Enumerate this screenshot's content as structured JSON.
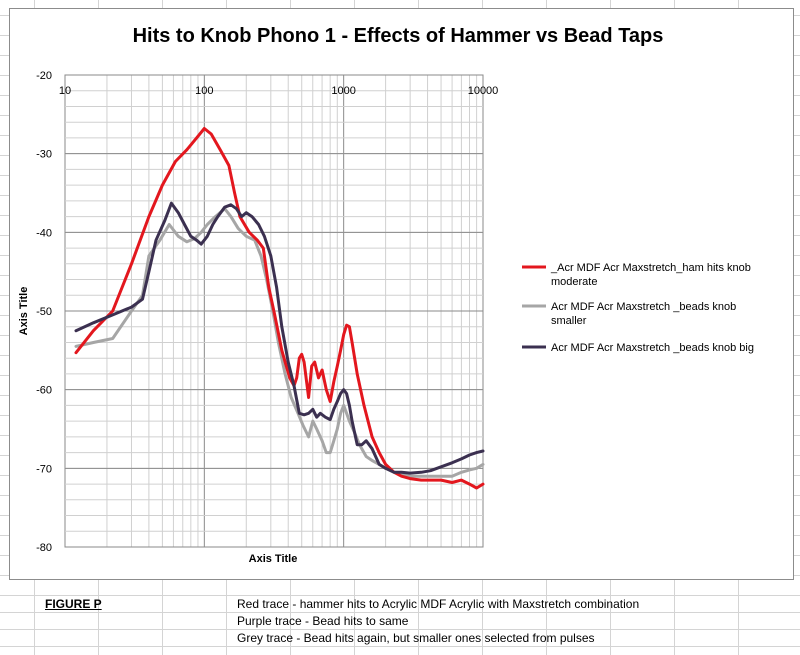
{
  "chart_data": {
    "type": "line",
    "title": "Hits to Knob Phono 1 - Effects of Hammer vs Bead Taps",
    "xlabel": "Axis Title",
    "ylabel": "Axis Title",
    "x_scale": "log",
    "xlim": [
      10,
      10000
    ],
    "ylim": [
      -80,
      -20
    ],
    "x_ticks": [
      10,
      100,
      1000,
      10000
    ],
    "x_tick_labels": [
      "10",
      "100",
      "1000",
      "10000"
    ],
    "y_ticks": [
      -20,
      -30,
      -40,
      -50,
      -60,
      -70,
      -80
    ],
    "y_tick_labels": [
      "-20",
      "-30",
      "-40",
      "-50",
      "-60",
      "-70",
      "-80"
    ],
    "grid": true,
    "x_axis_position": "top",
    "legend_position": "right",
    "series": [
      {
        "name": "_Acr MDF Acr Maxstretch_ham hits knob moderate",
        "color": "#e3171e",
        "points": [
          [
            12,
            -55.3
          ],
          [
            16,
            -52.5
          ],
          [
            22,
            -50
          ],
          [
            30,
            -44
          ],
          [
            40,
            -38
          ],
          [
            50,
            -34
          ],
          [
            62,
            -31
          ],
          [
            75,
            -29.5
          ],
          [
            88,
            -28
          ],
          [
            100,
            -26.8
          ],
          [
            112,
            -27.5
          ],
          [
            130,
            -29.5
          ],
          [
            150,
            -31.5
          ],
          [
            165,
            -35
          ],
          [
            180,
            -38
          ],
          [
            210,
            -40
          ],
          [
            240,
            -41
          ],
          [
            265,
            -42
          ],
          [
            290,
            -47
          ],
          [
            320,
            -50.5
          ],
          [
            360,
            -55
          ],
          [
            410,
            -58.5
          ],
          [
            440,
            -59.5
          ],
          [
            460,
            -58.5
          ],
          [
            480,
            -56
          ],
          [
            500,
            -55.5
          ],
          [
            520,
            -56.5
          ],
          [
            560,
            -61
          ],
          [
            590,
            -57
          ],
          [
            620,
            -56.5
          ],
          [
            660,
            -58.5
          ],
          [
            700,
            -57.5
          ],
          [
            750,
            -60
          ],
          [
            800,
            -61.5
          ],
          [
            850,
            -59
          ],
          [
            900,
            -57
          ],
          [
            950,
            -55
          ],
          [
            1000,
            -53
          ],
          [
            1050,
            -51.8
          ],
          [
            1100,
            -52
          ],
          [
            1150,
            -54
          ],
          [
            1250,
            -58
          ],
          [
            1400,
            -62
          ],
          [
            1600,
            -66
          ],
          [
            1800,
            -68
          ],
          [
            2000,
            -69.5
          ],
          [
            2300,
            -70.5
          ],
          [
            2600,
            -71
          ],
          [
            3000,
            -71.3
          ],
          [
            3600,
            -71.5
          ],
          [
            4200,
            -71.5
          ],
          [
            5000,
            -71.5
          ],
          [
            6000,
            -71.8
          ],
          [
            7000,
            -71.5
          ],
          [
            8000,
            -72
          ],
          [
            9000,
            -72.5
          ],
          [
            10000,
            -72
          ]
        ]
      },
      {
        "name": "Acr MDF  Acr Maxstretch _beads knob smaller",
        "color": "#a6a6a6",
        "points": [
          [
            12,
            -54.5
          ],
          [
            16,
            -54
          ],
          [
            22,
            -53.5
          ],
          [
            30,
            -50
          ],
          [
            36,
            -48
          ],
          [
            40,
            -43
          ],
          [
            48,
            -41
          ],
          [
            56,
            -39
          ],
          [
            65,
            -40.5
          ],
          [
            75,
            -41.2
          ],
          [
            85,
            -40.8
          ],
          [
            95,
            -40
          ],
          [
            105,
            -39
          ],
          [
            120,
            -38
          ],
          [
            140,
            -37
          ],
          [
            155,
            -38
          ],
          [
            175,
            -39.5
          ],
          [
            200,
            -40.5
          ],
          [
            230,
            -41
          ],
          [
            255,
            -43
          ],
          [
            280,
            -46
          ],
          [
            310,
            -50
          ],
          [
            340,
            -54
          ],
          [
            380,
            -58
          ],
          [
            420,
            -61
          ],
          [
            470,
            -63
          ],
          [
            510,
            -64.5
          ],
          [
            560,
            -66
          ],
          [
            600,
            -64
          ],
          [
            640,
            -65
          ],
          [
            700,
            -66.5
          ],
          [
            750,
            -68
          ],
          [
            800,
            -68
          ],
          [
            850,
            -66.5
          ],
          [
            900,
            -65
          ],
          [
            950,
            -63
          ],
          [
            1000,
            -62
          ],
          [
            1050,
            -63
          ],
          [
            1100,
            -64
          ],
          [
            1200,
            -65.5
          ],
          [
            1300,
            -67
          ],
          [
            1450,
            -68.5
          ],
          [
            1600,
            -69
          ],
          [
            1800,
            -69.5
          ],
          [
            2000,
            -70
          ],
          [
            2300,
            -70.5
          ],
          [
            2600,
            -70.8
          ],
          [
            3000,
            -71
          ],
          [
            3600,
            -71
          ],
          [
            4200,
            -71
          ],
          [
            5000,
            -71
          ],
          [
            6000,
            -71
          ],
          [
            7000,
            -70.5
          ],
          [
            8000,
            -70.2
          ],
          [
            9000,
            -70
          ],
          [
            10000,
            -69.5
          ]
        ]
      },
      {
        "name": "Acr MDF Acr Maxstretch _beads knob big",
        "color": "#3b3050",
        "points": [
          [
            12,
            -52.5
          ],
          [
            16,
            -51.5
          ],
          [
            22,
            -50.5
          ],
          [
            30,
            -49.5
          ],
          [
            36,
            -48.5
          ],
          [
            40,
            -45
          ],
          [
            45,
            -41
          ],
          [
            52,
            -38.5
          ],
          [
            58,
            -36.3
          ],
          [
            65,
            -37.5
          ],
          [
            72,
            -39
          ],
          [
            80,
            -40.5
          ],
          [
            88,
            -41
          ],
          [
            95,
            -41.5
          ],
          [
            105,
            -40.5
          ],
          [
            115,
            -39
          ],
          [
            125,
            -38
          ],
          [
            140,
            -36.8
          ],
          [
            155,
            -36.5
          ],
          [
            170,
            -37
          ],
          [
            185,
            -38
          ],
          [
            200,
            -37.5
          ],
          [
            220,
            -38
          ],
          [
            245,
            -39
          ],
          [
            270,
            -40.5
          ],
          [
            300,
            -43
          ],
          [
            330,
            -47
          ],
          [
            360,
            -52
          ],
          [
            400,
            -56.5
          ],
          [
            440,
            -59.5
          ],
          [
            480,
            -63
          ],
          [
            520,
            -63.2
          ],
          [
            560,
            -63
          ],
          [
            600,
            -62.5
          ],
          [
            640,
            -63.5
          ],
          [
            680,
            -63
          ],
          [
            740,
            -63.5
          ],
          [
            800,
            -63.8
          ],
          [
            850,
            -62.5
          ],
          [
            900,
            -61.5
          ],
          [
            950,
            -60.5
          ],
          [
            1000,
            -60
          ],
          [
            1050,
            -60.5
          ],
          [
            1100,
            -62
          ],
          [
            1150,
            -64
          ],
          [
            1250,
            -67
          ],
          [
            1350,
            -67
          ],
          [
            1450,
            -66.5
          ],
          [
            1600,
            -67.5
          ],
          [
            1800,
            -69.5
          ],
          [
            2000,
            -70
          ],
          [
            2300,
            -70.5
          ],
          [
            2600,
            -70.5
          ],
          [
            3000,
            -70.6
          ],
          [
            3600,
            -70.5
          ],
          [
            4200,
            -70.3
          ],
          [
            5000,
            -69.8
          ],
          [
            6000,
            -69.3
          ],
          [
            7000,
            -68.8
          ],
          [
            8000,
            -68.3
          ],
          [
            9000,
            -68
          ],
          [
            10000,
            -67.8
          ]
        ]
      }
    ]
  },
  "caption": {
    "figure_label": "FIGURE P",
    "lines": [
      "Red trace - hammer hits to Acrylic MDF Acrylic with Maxstretch combination",
      "Purple trace - Bead hits to same",
      "Grey trace - Bead hits again, but smaller ones selected from pulses"
    ]
  }
}
